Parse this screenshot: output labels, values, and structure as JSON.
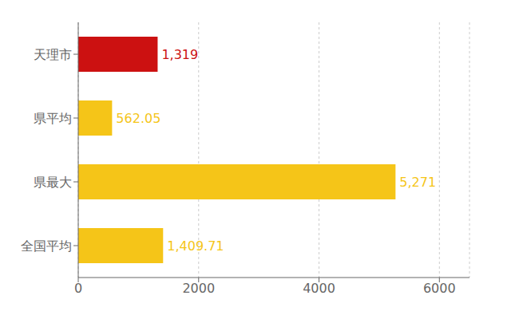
{
  "chart_data": {
    "type": "bar",
    "orientation": "horizontal",
    "categories": [
      "天理市",
      "県平均",
      "県最大",
      "全国平均"
    ],
    "values": [
      1319,
      562.05,
      5271,
      1409.71
    ],
    "value_labels": [
      "1,319",
      "562.05",
      "5,271",
      "1,409.71"
    ],
    "colors": [
      "#cc1111",
      "#f5c518",
      "#f5c518",
      "#f5c518"
    ],
    "xlim": [
      0,
      6500
    ],
    "xticks": [
      0,
      2000,
      4000,
      6000
    ],
    "grid": true,
    "data_labels": true
  }
}
